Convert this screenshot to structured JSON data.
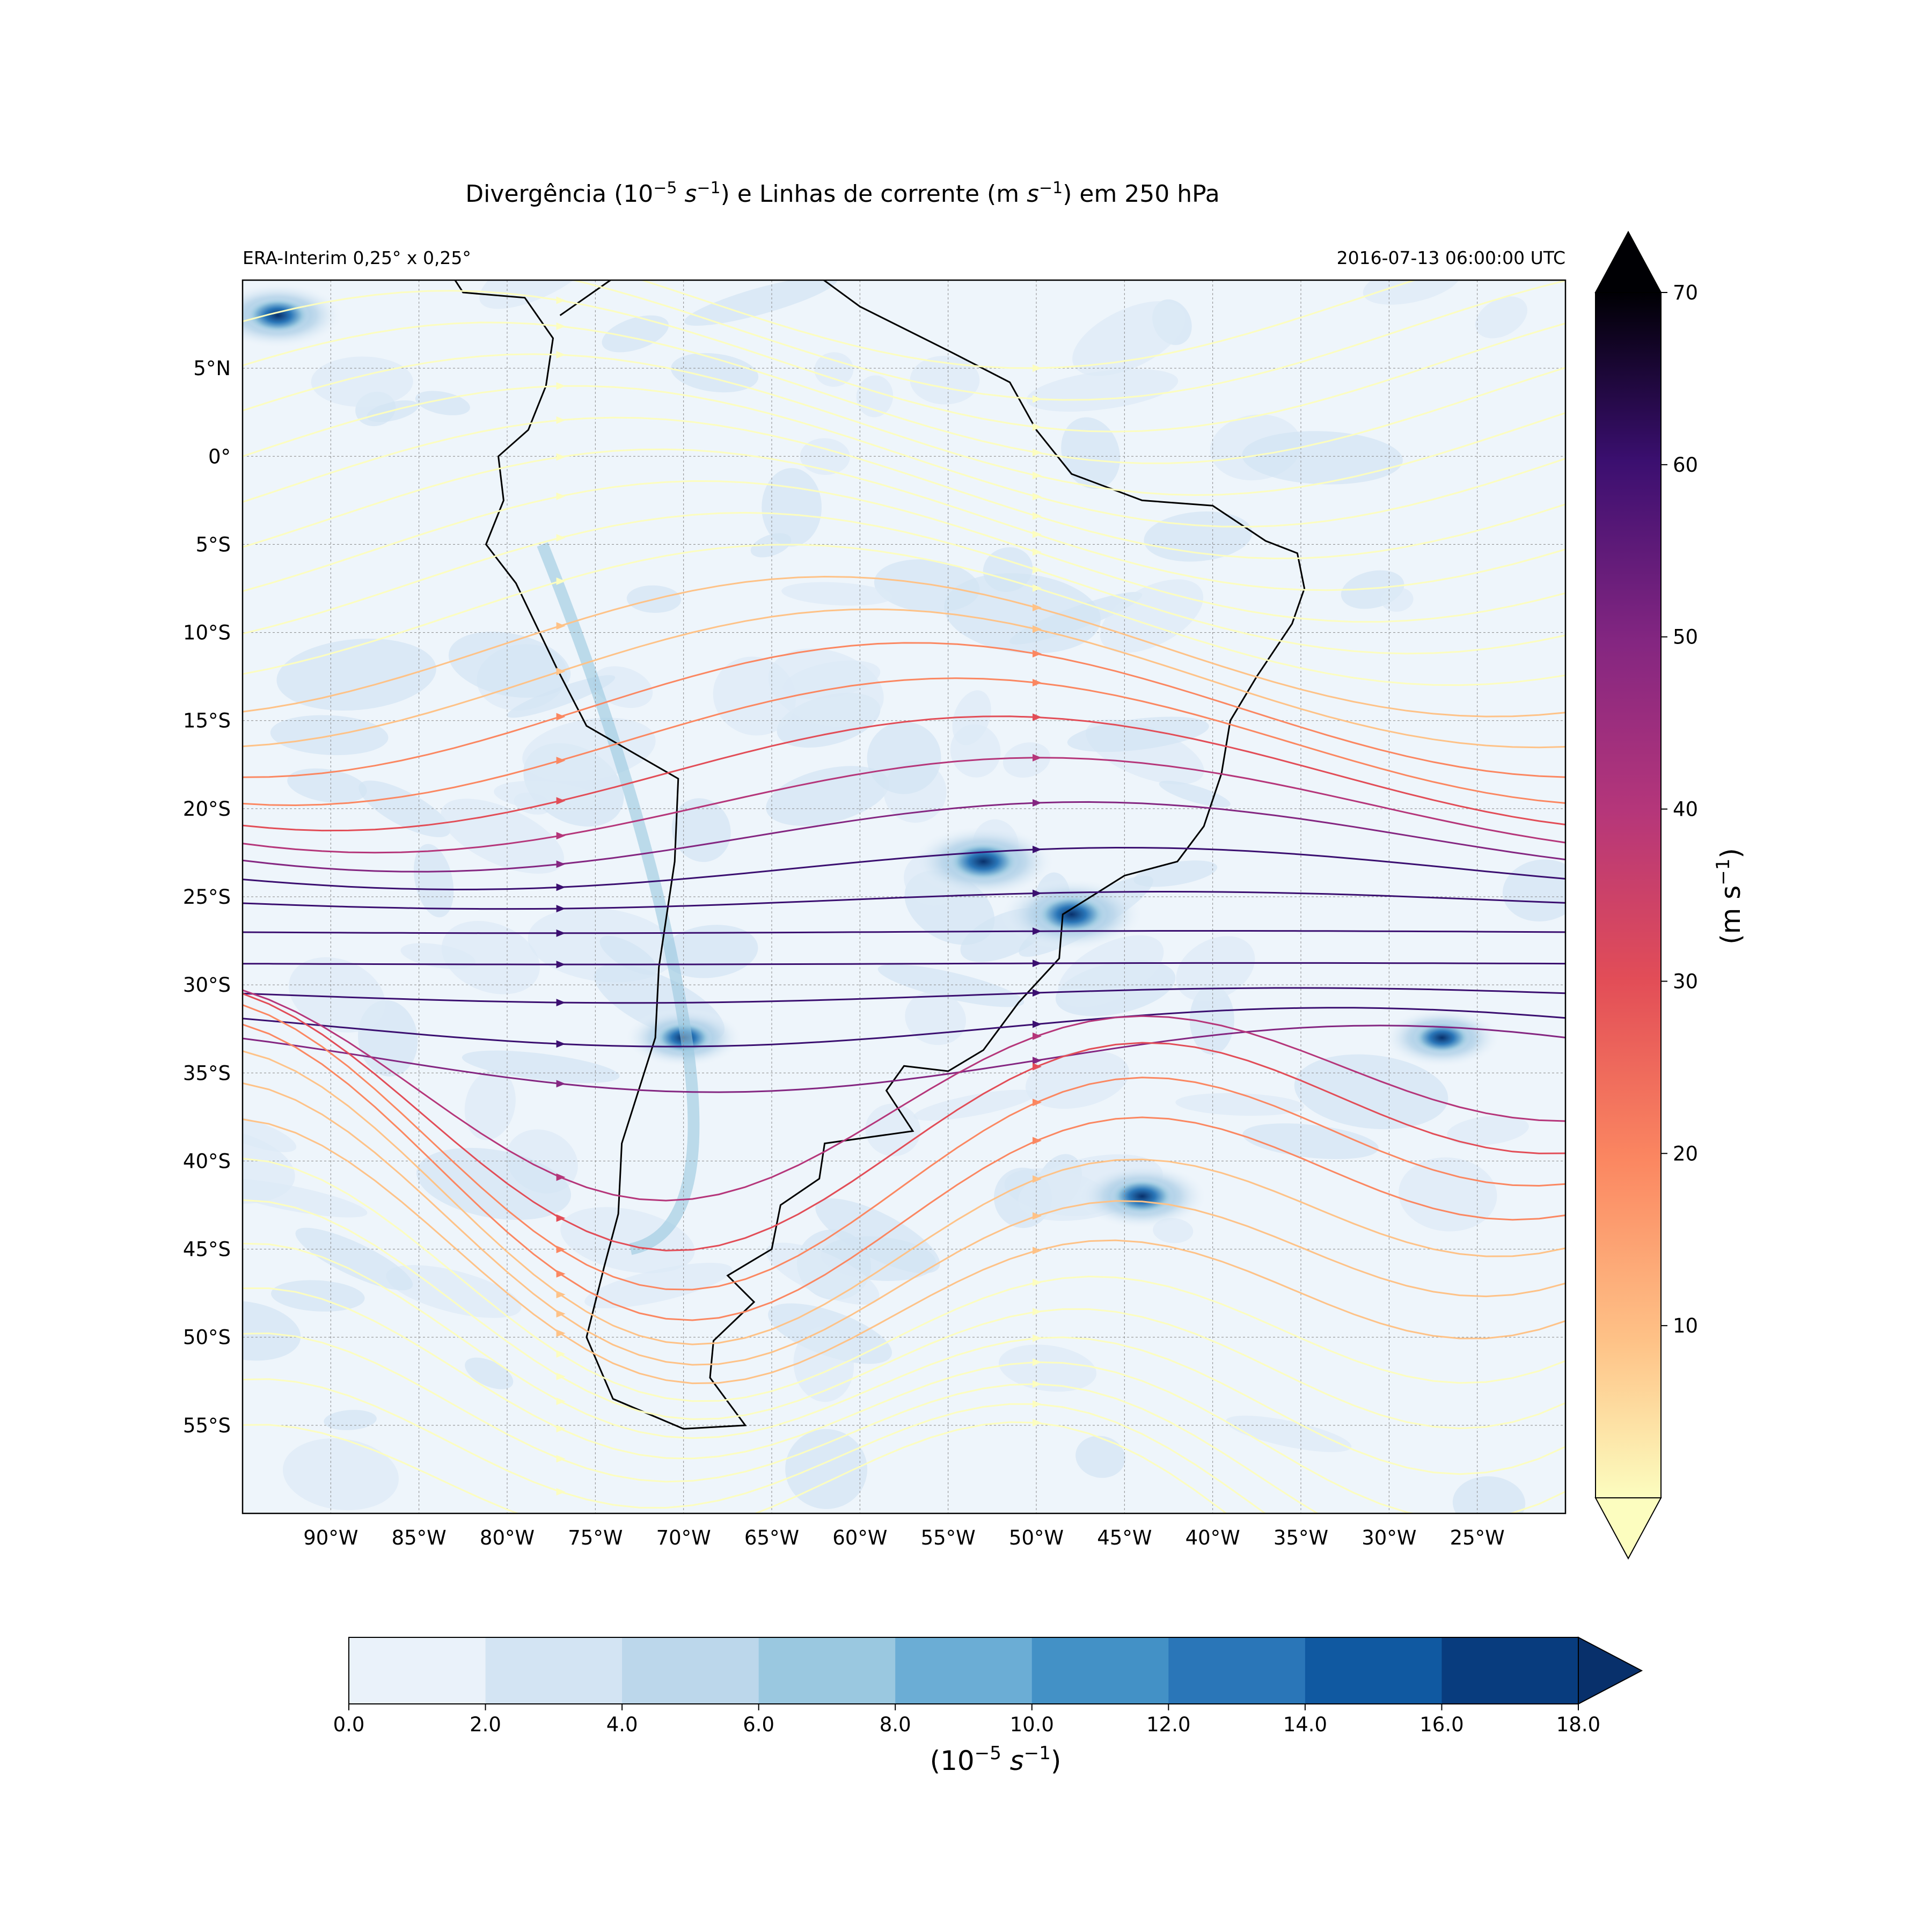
{
  "title": {
    "main": "Divergência (10",
    "exp1": "−5",
    "unit1": "s",
    "exp2": "−1",
    "mid": ") e Linhas de corrente (m ",
    "unit2": "s",
    "exp3": "−1",
    "tail": ") em 250 hPa",
    "open": "(",
    "space": " "
  },
  "subtitle_left": "ERA-Interim 0,25° x 0,25°",
  "subtitle_right": "2016-07-13 06:00:00 UTC",
  "map": {
    "lon_range": [
      -95,
      -20
    ],
    "lat_range": [
      -60,
      10
    ],
    "lon_ticks": [
      "90°W",
      "85°W",
      "80°W",
      "75°W",
      "70°W",
      "65°W",
      "60°W",
      "55°W",
      "50°W",
      "45°W",
      "40°W",
      "35°W",
      "30°W",
      "25°W"
    ],
    "lat_ticks": [
      "5°N",
      "0°",
      "5°S",
      "10°S",
      "15°S",
      "20°S",
      "25°S",
      "30°S",
      "35°S",
      "40°S",
      "45°S",
      "50°S",
      "55°S"
    ],
    "gridlines": true
  },
  "speed_colorbar": {
    "cmap": "magma_r",
    "ticks": [
      "10",
      "20",
      "30",
      "40",
      "50",
      "60",
      "70"
    ],
    "range": [
      0,
      70
    ],
    "label": "(m s",
    "label_exp": "−1",
    "label_close": ")",
    "extend": "both"
  },
  "div_colorbar": {
    "cmap": "Blues",
    "ticks": [
      "0.0",
      "2.0",
      "4.0",
      "6.0",
      "8.0",
      "10.0",
      "12.0",
      "14.0",
      "16.0",
      "18.0"
    ],
    "colors": [
      "#eaf2fa",
      "#d3e4f3",
      "#bcd7eb",
      "#9ac8e0",
      "#6badd5",
      "#4391c6",
      "#2a76b8",
      "#1059a1",
      "#083c7e"
    ],
    "extend_color": "#08306b",
    "label_open": "(10",
    "label_exp1": "−5",
    "label_s": "s",
    "label_exp2": "−1",
    "label_close": ")"
  },
  "chart_data": {
    "type": "map",
    "variables": [
      "divergence (10^-5 s^-1)",
      "streamlines (m s^-1)"
    ],
    "level_hPa": 250,
    "jet_core": {
      "lat": -28,
      "lon_from": -95,
      "lon_to": -20,
      "speed_ms": 65
    },
    "divergence_maxima": [
      {
        "lat": -26,
        "lon": -48,
        "value": 16
      },
      {
        "lat": -23,
        "lon": -53,
        "value": 16
      },
      {
        "lat": -42,
        "lon": -44,
        "value": 14
      },
      {
        "lat": -33,
        "lon": -70,
        "value": 12
      },
      {
        "lat": -33,
        "lon": -27,
        "value": 12
      },
      {
        "lat": 8,
        "lon": -93,
        "value": 14
      }
    ]
  }
}
